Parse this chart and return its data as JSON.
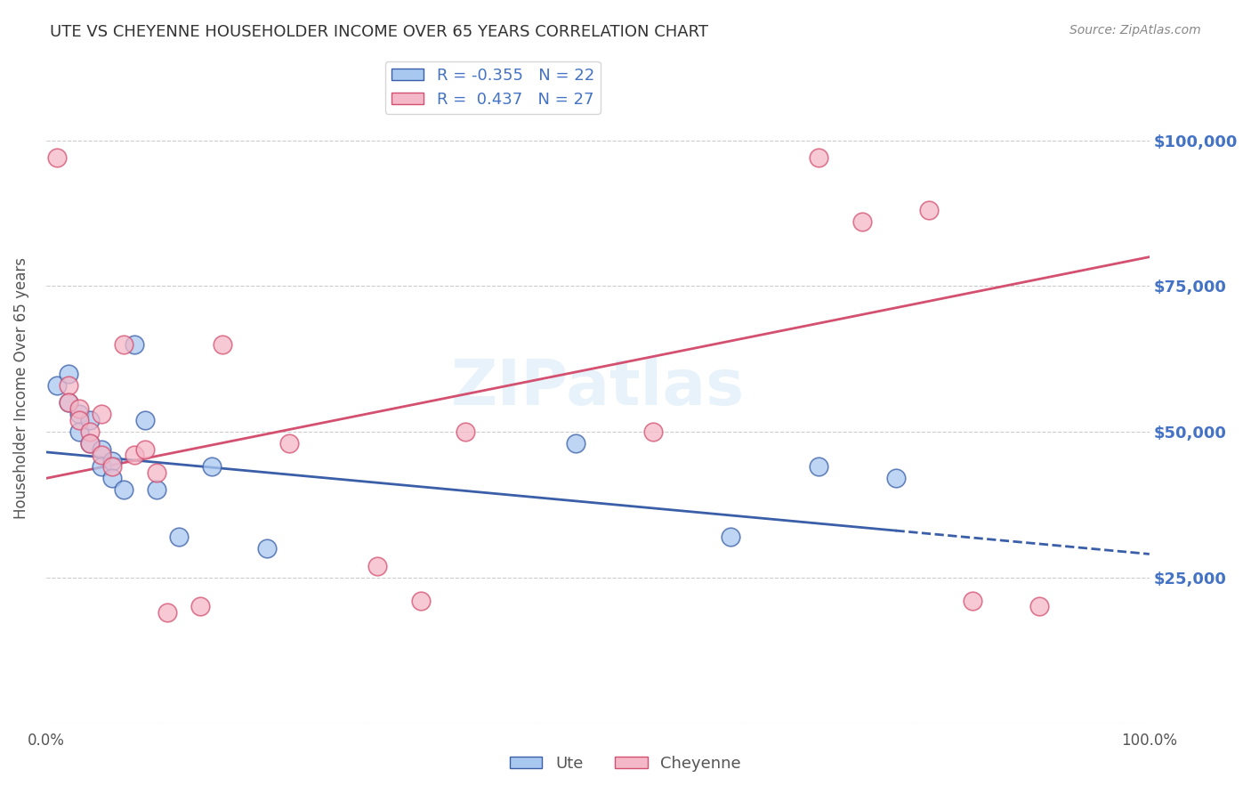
{
  "title": "UTE VS CHEYENNE HOUSEHOLDER INCOME OVER 65 YEARS CORRELATION CHART",
  "source": "Source: ZipAtlas.com",
  "ylabel": "Householder Income Over 65 years",
  "ute_R": -0.355,
  "ute_N": 22,
  "cheyenne_R": 0.437,
  "cheyenne_N": 27,
  "ute_color": "#a8c8f0",
  "cheyenne_color": "#f4b8c8",
  "ute_line_color": "#3a5fa8",
  "cheyenne_line_color": "#d45070",
  "background_color": "#ffffff",
  "grid_color": "#cccccc",
  "title_color": "#333333",
  "right_label_color": "#4472c4",
  "ute_x": [
    1,
    2,
    2,
    3,
    3,
    4,
    4,
    5,
    5,
    6,
    6,
    7,
    8,
    9,
    10,
    12,
    15,
    20,
    48,
    62,
    70,
    77
  ],
  "ute_y": [
    58000,
    60000,
    55000,
    53000,
    50000,
    52000,
    48000,
    47000,
    44000,
    45000,
    42000,
    40000,
    65000,
    52000,
    40000,
    32000,
    44000,
    30000,
    48000,
    32000,
    44000,
    42000
  ],
  "cheyenne_x": [
    1,
    2,
    2,
    3,
    3,
    4,
    4,
    5,
    5,
    6,
    7,
    8,
    9,
    10,
    11,
    14,
    16,
    22,
    30,
    34,
    38,
    55,
    70,
    74,
    80,
    84,
    90
  ],
  "cheyenne_y": [
    97000,
    58000,
    55000,
    54000,
    52000,
    50000,
    48000,
    53000,
    46000,
    44000,
    65000,
    46000,
    47000,
    43000,
    19000,
    20000,
    65000,
    48000,
    27000,
    21000,
    50000,
    50000,
    97000,
    86000,
    88000,
    21000,
    20000
  ],
  "ylim": [
    0,
    115000
  ],
  "xlim": [
    0,
    100
  ],
  "yticks": [
    0,
    25000,
    50000,
    75000,
    100000
  ],
  "ytick_labels": [
    "",
    "$25,000",
    "$50,000",
    "$75,000",
    "$100,000"
  ],
  "ute_line_x0": 0,
  "ute_line_y0": 46500,
  "ute_line_x1": 100,
  "ute_line_y1": 29000,
  "chey_line_x0": 0,
  "chey_line_y0": 42000,
  "chey_line_x1": 100,
  "chey_line_y1": 80000,
  "ute_solid_end": 77
}
